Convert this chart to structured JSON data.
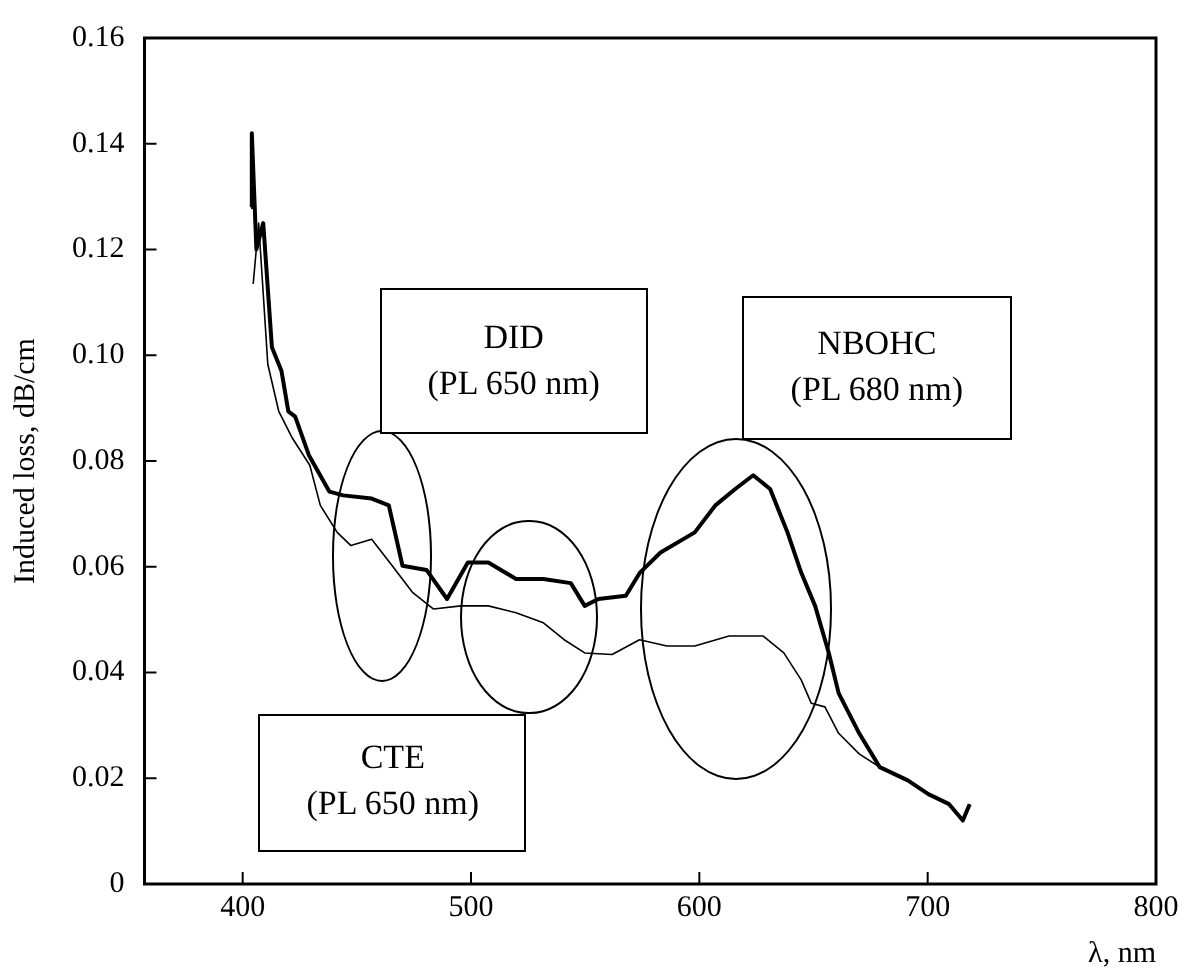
{
  "chart_data": {
    "type": "line",
    "xlabel": "λ, nm",
    "ylabel": "Induced loss, dB/cm",
    "annotations": [
      "DID\n(PL 650 nm)",
      "NBOHC\n(PL 680 nm)",
      "CTE\n(PL 650 nm)"
    ],
    "xlim": [
      357,
      800
    ],
    "xticks": [
      400,
      500,
      600,
      700,
      800
    ],
    "ylim": [
      0,
      0.16
    ],
    "yticks": [
      0,
      {
        "value": 0.02,
        "label": "0.02"
      },
      {
        "value": 0.04,
        "label": "0.04"
      },
      {
        "value": 0.06,
        "label": "0.06"
      },
      {
        "value": 0.08,
        "label": "0.08"
      },
      {
        "value": 0.1,
        "label": "0.10"
      },
      {
        "value": 0.12,
        "label": "0.12"
      },
      {
        "value": 0.14,
        "label": "0.14"
      },
      {
        "value": 0.16,
        "label": "0.16"
      }
    ],
    "grid": false,
    "legend": false,
    "marker": "none",
    "line_style": "solid",
    "series": [
      {
        "color": "#000000",
        "x": [
          403.7,
          404,
          406,
          409,
          412.8,
          417,
          420,
          423,
          429,
          438,
          444,
          456.5,
          464,
          470,
          480.5,
          489.5,
          498.6,
          507.6,
          519.7,
          531.7,
          543.7,
          549.8,
          555.8,
          567.8,
          574,
          583,
          598,
          607,
          616,
          623.6,
          631,
          638.6,
          644.6,
          650.7,
          656.7,
          661,
          670,
          679,
          691.3,
          700.3,
          709.4,
          715.4,
          718.4
        ],
        "values": [
          0.128,
          0.142,
          0.12,
          0.125,
          0.1015,
          0.097,
          0.0894,
          0.0884,
          0.0811,
          0.0742,
          0.0735,
          0.0729,
          0.0716,
          0.0602,
          0.0594,
          0.0539,
          0.0608,
          0.0608,
          0.0577,
          0.0577,
          0.0569,
          0.0526,
          0.0539,
          0.0545,
          0.0589,
          0.0627,
          0.0665,
          0.0716,
          0.0748,
          0.0773,
          0.0747,
          0.0665,
          0.0589,
          0.0526,
          0.0437,
          0.0361,
          0.0285,
          0.0221,
          0.0196,
          0.017,
          0.0151,
          0.012,
          0.0151
        ]
      },
      {
        "color": "#000000",
        "x": [
          404.6,
          407,
          411,
          415.8,
          421.8,
          429.4,
          434,
          441.4,
          447.4,
          456.5,
          465.5,
          474.5,
          483.6,
          495.6,
          507.6,
          519.7,
          531.7,
          540.8,
          549.8,
          561.8,
          573.8,
          585.8,
          598,
          613,
          628,
          637,
          644.6,
          649,
          655,
          661,
          670,
          679,
          691.3,
          700.3,
          709.4,
          715.4,
          718.4
        ],
        "values": [
          0.1135,
          0.125,
          0.0983,
          0.0894,
          0.0843,
          0.0792,
          0.0716,
          0.0665,
          0.064,
          0.0652,
          0.0602,
          0.0551,
          0.052,
          0.0526,
          0.0526,
          0.0513,
          0.0494,
          0.0462,
          0.0437,
          0.0434,
          0.0462,
          0.045,
          0.045,
          0.0469,
          0.0469,
          0.0437,
          0.0386,
          0.0342,
          0.0335,
          0.0285,
          0.0246,
          0.0221,
          0.0196,
          0.017,
          0.0151,
          0.012,
          0.0151
        ]
      }
    ]
  }
}
